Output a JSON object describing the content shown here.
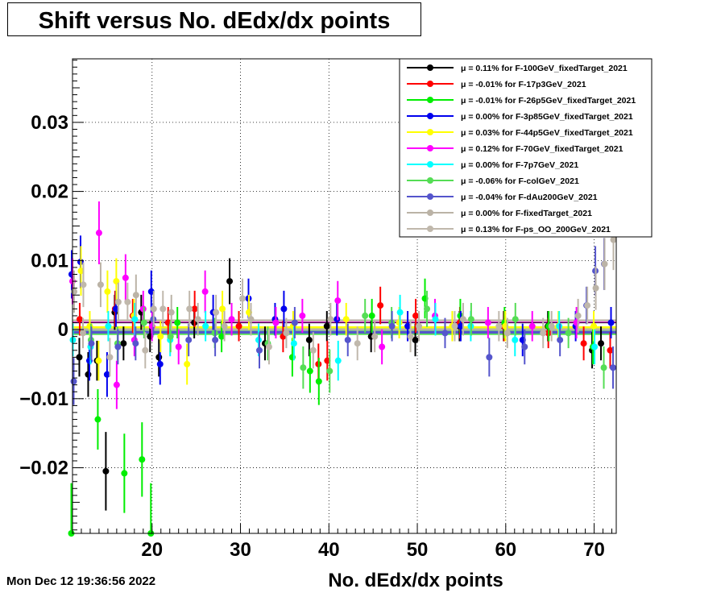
{
  "title": "Shift versus No. dEdx/dx points",
  "timestamp": "Mon Dec 12 19:36:56 2022",
  "chart_data": {
    "type": "scatter",
    "title": "Shift versus No. dEdx/dx points",
    "xlabel": "No. dEdx/dx points",
    "ylabel": "",
    "xlim": [
      11,
      72.5
    ],
    "ylim": [
      -0.0295,
      0.0392
    ],
    "x_ticks": [
      20,
      30,
      40,
      50,
      60,
      70
    ],
    "x_tick_labels": [
      "20",
      "30",
      "40",
      "50",
      "60",
      "70"
    ],
    "y_ticks": [
      -0.02,
      -0.01,
      0,
      0.01,
      0.02,
      0.03
    ],
    "y_tick_labels": [
      "−0.02",
      "−0.01",
      "0",
      "0.01",
      "0.02",
      "0.03"
    ],
    "grid": true,
    "legend_position": "top-right",
    "series": [
      {
        "label": "μ =  0.11% for F-100GeV_fixedTarget_2021",
        "color": "#000000",
        "mean": 0.0011,
        "points": [
          [
            12,
            -0.004
          ],
          [
            13,
            -0.0065
          ],
          [
            14,
            -0.0045
          ],
          [
            15,
            -0.0205
          ],
          [
            16,
            0.0025
          ],
          [
            17,
            -0.002
          ],
          [
            19,
            0.0025
          ],
          [
            20,
            -0.001
          ],
          [
            21,
            -0.004
          ],
          [
            25,
            0.001
          ],
          [
            29,
            0.007
          ],
          [
            33,
            -0.002
          ],
          [
            38,
            -0.0015
          ],
          [
            40,
            0.0005
          ],
          [
            45,
            -0.001
          ],
          [
            50,
            -0.0015
          ],
          [
            55,
            0.0005
          ],
          [
            60,
            0.0005
          ],
          [
            65,
            0.0005
          ],
          [
            70,
            -0.003
          ],
          [
            71,
            -0.002
          ]
        ]
      },
      {
        "label": "μ = -0.01% for F-17p3GeV_2021",
        "color": "#ff0000",
        "mean": -0.0001,
        "points": [
          [
            12,
            0.0015
          ],
          [
            16,
            0.003
          ],
          [
            18,
            0.002
          ],
          [
            22,
            0.001
          ],
          [
            25,
            0.003
          ],
          [
            30,
            0.0005
          ],
          [
            35,
            -0.001
          ],
          [
            39,
            -0.005
          ],
          [
            40,
            -0.0045
          ],
          [
            46,
            0.0035
          ],
          [
            50,
            0.002
          ],
          [
            55,
            0.001
          ],
          [
            60,
            0.0005
          ],
          [
            65,
            -0.0005
          ],
          [
            69,
            -0.002
          ],
          [
            72,
            -0.003
          ]
        ]
      },
      {
        "label": "μ = -0.01% for F-26p5GeV_fixedTarget_2021",
        "color": "#00ee00",
        "mean": -0.0001,
        "points": [
          [
            11,
            -0.0295
          ],
          [
            14,
            -0.013
          ],
          [
            17,
            -0.0208
          ],
          [
            19,
            -0.0188
          ],
          [
            20,
            -0.0295
          ],
          [
            23,
            0.001
          ],
          [
            28,
            -0.001
          ],
          [
            36,
            -0.004
          ],
          [
            38,
            -0.006
          ],
          [
            39,
            -0.0075
          ],
          [
            45,
            0.002
          ],
          [
            51,
            0.0045
          ],
          [
            55,
            0.002
          ],
          [
            60,
            0.001
          ],
          [
            65,
            0.0005
          ],
          [
            70,
            -0.0025
          ]
        ]
      },
      {
        "label": "μ =  0.00% for F-3p85GeV_fixedTarget_2021",
        "color": "#0000ee",
        "mean": 0.0,
        "points": [
          [
            11,
            0.008
          ],
          [
            12,
            0.0098
          ],
          [
            13,
            -0.0045
          ],
          [
            15,
            -0.0065
          ],
          [
            16,
            0.003
          ],
          [
            20,
            0.0055
          ],
          [
            21,
            -0.005
          ],
          [
            27,
            0.0025
          ],
          [
            31,
            0.0045
          ],
          [
            34,
            0.0015
          ],
          [
            35,
            0.003
          ],
          [
            41,
            0.0015
          ],
          [
            49,
            0.0005
          ],
          [
            55,
            0.0005
          ],
          [
            62,
            -0.0015
          ],
          [
            68,
            0.0005
          ],
          [
            72,
            0.001
          ]
        ]
      },
      {
        "label": "μ =  0.03% for F-44p5GeV_fixedTarget_2021",
        "color": "#ffff00",
        "mean": 0.0003,
        "points": [
          [
            12,
            0.0085
          ],
          [
            13,
            0.0005
          ],
          [
            14,
            -0.0045
          ],
          [
            15,
            0.0055
          ],
          [
            16,
            0.007
          ],
          [
            18,
            0.002
          ],
          [
            21,
            -0.001
          ],
          [
            24,
            -0.005
          ],
          [
            28,
            0.003
          ],
          [
            31,
            0.0025
          ],
          [
            36,
            0.0005
          ],
          [
            42,
            0.0015
          ],
          [
            48,
            0.001
          ],
          [
            54,
            0.0005
          ],
          [
            60,
            0.0005
          ],
          [
            66,
            0.0005
          ],
          [
            70,
            0.0005
          ]
        ]
      },
      {
        "label": "μ =  0.12% for F-70GeV_fixedTarget_2021",
        "color": "#ff00ff",
        "mean": 0.0012,
        "points": [
          [
            11,
            0.007
          ],
          [
            14,
            0.014
          ],
          [
            16,
            -0.008
          ],
          [
            17,
            0.0075
          ],
          [
            18,
            -0.0015
          ],
          [
            19,
            0.003
          ],
          [
            20,
            0.0005
          ],
          [
            23,
            -0.0025
          ],
          [
            26,
            0.0055
          ],
          [
            29,
            0.0015
          ],
          [
            34,
            0.001
          ],
          [
            37,
            0.002
          ],
          [
            41,
            0.0042
          ],
          [
            46,
            -0.0025
          ],
          [
            52,
            0.002
          ],
          [
            58,
            0.001
          ],
          [
            63,
            0.0005
          ],
          [
            68,
            0.001
          ]
        ]
      },
      {
        "label": "μ =  0.00% for F-7p7GeV_2021",
        "color": "#00ffff",
        "mean": 0.0,
        "points": [
          [
            11,
            -0.0015
          ],
          [
            13,
            -0.0025
          ],
          [
            15,
            0.0005
          ],
          [
            18,
            0.0015
          ],
          [
            22,
            -0.0015
          ],
          [
            26,
            0.0005
          ],
          [
            32,
            -0.0015
          ],
          [
            36,
            -0.002
          ],
          [
            41,
            -0.0045
          ],
          [
            48,
            0.0025
          ],
          [
            52,
            0.0015
          ],
          [
            56,
            0.0005
          ],
          [
            61,
            -0.0015
          ],
          [
            66,
            0.0005
          ],
          [
            70,
            -0.0025
          ]
        ]
      },
      {
        "label": "μ = -0.06% for F-colGeV_2021",
        "color": "#55dd55",
        "mean": -0.0006,
        "points": [
          [
            13,
            -0.0015
          ],
          [
            16,
            -0.002
          ],
          [
            19,
            0.001
          ],
          [
            22,
            -0.001
          ],
          [
            27,
            -0.0005
          ],
          [
            33,
            -0.002
          ],
          [
            37,
            -0.0055
          ],
          [
            40,
            -0.006
          ],
          [
            44,
            0.002
          ],
          [
            47,
            0.001
          ],
          [
            51,
            0.003
          ],
          [
            56,
            0.0015
          ],
          [
            61,
            0.0015
          ],
          [
            67,
            -0.0005
          ],
          [
            71,
            -0.0055
          ]
        ]
      },
      {
        "label": "μ = -0.04% for F-dAu200GeV_2021",
        "color": "#5555cc",
        "mean": -0.0004,
        "points": [
          [
            11,
            -0.0075
          ],
          [
            13,
            -0.002
          ],
          [
            16,
            -0.0025
          ],
          [
            18,
            -0.002
          ],
          [
            20,
            0.0015
          ],
          [
            24,
            -0.0015
          ],
          [
            27,
            -0.0015
          ],
          [
            32,
            -0.003
          ],
          [
            36,
            0.001
          ],
          [
            42,
            -0.0015
          ],
          [
            47,
            0.0005
          ],
          [
            53,
            -0.0005
          ],
          [
            58,
            -0.004
          ],
          [
            62,
            -0.0025
          ],
          [
            66,
            -0.0015
          ],
          [
            69,
            0.0035
          ],
          [
            70,
            0.0085
          ],
          [
            71,
            0.0095
          ],
          [
            72,
            -0.0055
          ]
        ]
      },
      {
        "label": "μ =  0.00% for F-fixedTarget_2021",
        "color": "#bbb3a6",
        "mean": 0.0,
        "points": [
          [
            11,
            0.0055
          ],
          [
            12,
            -0.0005
          ],
          [
            14,
            0.0065
          ],
          [
            16,
            0.004
          ],
          [
            18,
            0.005
          ],
          [
            20,
            0.003
          ],
          [
            22,
            0.0025
          ],
          [
            25,
            0.0015
          ],
          [
            28,
            0.0005
          ],
          [
            31,
            0.0015
          ],
          [
            35,
            -0.0005
          ],
          [
            40,
            0.0015
          ],
          [
            45,
            -0.001
          ],
          [
            50,
            0.0005
          ],
          [
            55,
            0.0015
          ],
          [
            60,
            -0.0005
          ],
          [
            65,
            0.0005
          ],
          [
            68,
            0.002
          ],
          [
            70,
            0.006
          ],
          [
            71,
            0.0095
          ],
          [
            72,
            0.013
          ]
        ]
      },
      {
        "label": "μ =  0.13% for F-ps_OO_200GeV_2021",
        "color": "#c0b8ac",
        "mean": 0.0013,
        "points": [
          [
            12,
            0.0065
          ],
          [
            15,
            -0.004
          ],
          [
            17,
            0.004
          ],
          [
            19,
            -0.003
          ],
          [
            21,
            0.003
          ],
          [
            24,
            0.003
          ],
          [
            27,
            0.0025
          ],
          [
            30,
            0.0045
          ],
          [
            33,
            -0.0025
          ],
          [
            38,
            -0.003
          ],
          [
            43,
            -0.002
          ],
          [
            49,
            -0.001
          ],
          [
            54,
            0.0005
          ],
          [
            59,
            0.0005
          ],
          [
            64,
            -0.0005
          ],
          [
            69,
            0.0035
          ]
        ]
      }
    ]
  }
}
